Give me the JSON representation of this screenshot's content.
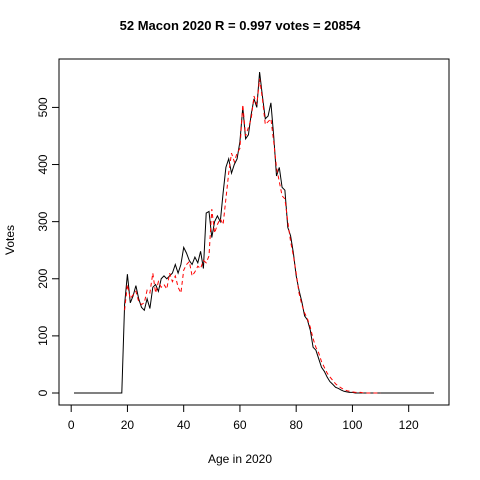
{
  "chart_data": {
    "type": "line",
    "title": "52 Macon 2020 R = 0.997 votes = 20854",
    "xlabel": "Age in 2020",
    "ylabel": "Votes",
    "xlim": [
      1,
      129
    ],
    "ylim": [
      0,
      562
    ],
    "xticks": [
      0,
      20,
      40,
      60,
      80,
      100,
      120
    ],
    "yticks": [
      0,
      100,
      200,
      300,
      400,
      500
    ],
    "grid": false,
    "legend": "none",
    "series": [
      {
        "style": "solid",
        "color": "#000000",
        "x": [
          1,
          18,
          19,
          20,
          21,
          22,
          23,
          24,
          25,
          26,
          27,
          28,
          29,
          30,
          31,
          32,
          33,
          34,
          35,
          36,
          37,
          38,
          39,
          40,
          41,
          42,
          43,
          44,
          45,
          46,
          47,
          48,
          49,
          50,
          51,
          52,
          53,
          54,
          55,
          56,
          57,
          58,
          59,
          60,
          61,
          62,
          63,
          64,
          65,
          66,
          67,
          68,
          69,
          70,
          71,
          72,
          73,
          74,
          75,
          76,
          77,
          78,
          79,
          80,
          81,
          82,
          83,
          84,
          85,
          86,
          87,
          88,
          89,
          90,
          91,
          92,
          93,
          94,
          95,
          96,
          97,
          98,
          99,
          100,
          101,
          102,
          103,
          104,
          105,
          106,
          107,
          108,
          109,
          110,
          112,
          115,
          120,
          125,
          129
        ],
        "y": [
          0,
          0,
          155,
          208,
          158,
          170,
          188,
          165,
          150,
          145,
          165,
          148,
          185,
          190,
          178,
          200,
          205,
          200,
          205,
          210,
          225,
          210,
          225,
          255,
          245,
          232,
          225,
          238,
          228,
          248,
          218,
          315,
          318,
          272,
          300,
          310,
          300,
          350,
          395,
          410,
          385,
          400,
          410,
          440,
          500,
          445,
          452,
          488,
          515,
          500,
          562,
          520,
          480,
          485,
          508,
          450,
          380,
          395,
          360,
          355,
          290,
          275,
          245,
          205,
          180,
          160,
          135,
          128,
          110,
          80,
          75,
          60,
          45,
          38,
          28,
          20,
          15,
          10,
          8,
          5,
          3,
          2,
          1,
          1,
          0,
          0,
          0,
          0,
          0,
          0,
          0,
          0,
          0,
          0,
          0,
          0,
          0,
          0,
          0
        ]
      },
      {
        "style": "dashed",
        "color": "#ff0000",
        "x": [
          19,
          20,
          21,
          22,
          23,
          24,
          25,
          26,
          27,
          28,
          29,
          30,
          31,
          32,
          33,
          34,
          35,
          36,
          37,
          38,
          39,
          40,
          41,
          42,
          43,
          44,
          45,
          46,
          47,
          48,
          49,
          50,
          51,
          52,
          53,
          54,
          55,
          56,
          57,
          58,
          59,
          60,
          61,
          62,
          63,
          64,
          65,
          66,
          67,
          68,
          69,
          70,
          71,
          72,
          73,
          74,
          75,
          76,
          77,
          78,
          79,
          80,
          81,
          82,
          83,
          84,
          85,
          86,
          87,
          88,
          89,
          90,
          91,
          92,
          93,
          94,
          95,
          96,
          97,
          98,
          99,
          100,
          101,
          102,
          103,
          104,
          105,
          106,
          107,
          108,
          110
        ],
        "y": [
          145,
          190,
          165,
          172,
          178,
          160,
          155,
          158,
          180,
          175,
          210,
          175,
          195,
          185,
          190,
          182,
          210,
          195,
          205,
          185,
          175,
          215,
          225,
          230,
          205,
          212,
          222,
          218,
          232,
          228,
          240,
          322,
          280,
          295,
          305,
          295,
          340,
          385,
          420,
          405,
          420,
          428,
          505,
          450,
          465,
          480,
          520,
          505,
          550,
          515,
          470,
          475,
          480,
          440,
          395,
          370,
          345,
          340,
          300,
          265,
          240,
          210,
          175,
          155,
          140,
          130,
          115,
          95,
          80,
          70,
          55,
          45,
          35,
          28,
          22,
          16,
          12,
          9,
          6,
          4,
          3,
          2,
          1,
          1,
          1,
          0,
          0,
          0,
          0,
          0,
          0
        ]
      }
    ]
  }
}
